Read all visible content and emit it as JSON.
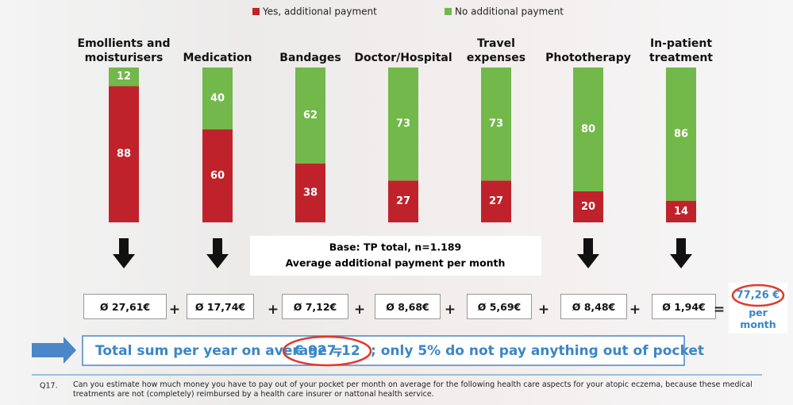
{
  "chart_data": {
    "type": "bar",
    "stacked": true,
    "categories": [
      "Emollients and moisturisers",
      "Medication",
      "Bandages",
      "Doctor/Hospital",
      "Travel expenses",
      "Phototherapy",
      "In-patient treatment"
    ],
    "series": [
      {
        "name": "Yes, additional payment",
        "color": "#c0222b",
        "values": [
          88,
          60,
          38,
          27,
          27,
          20,
          14
        ]
      },
      {
        "name": "No additional payment",
        "color": "#72b84a",
        "values": [
          12,
          40,
          62,
          73,
          73,
          80,
          86
        ]
      }
    ],
    "ylim": [
      0,
      100
    ]
  },
  "base": [
    "Base: TP total, n=1.189",
    "Average additional payment per month"
  ],
  "amounts": [
    "Ø 27,61€",
    "Ø 17,74€",
    "Ø 7,12€",
    "Ø 8,68€",
    "Ø 5,69€",
    "Ø 8,48€",
    "Ø 1,94€"
  ],
  "operators": [
    "+",
    "+",
    "+",
    "+",
    "+",
    "+",
    "="
  ],
  "total": {
    "value": "77,26 €",
    "unit": "per month"
  },
  "summary": {
    "label": "Total sum per year on average =",
    "amount": "€ 927,12",
    "note": "; only 5% do not pay anything out of pocket"
  },
  "footnote": {
    "number": "Q17.",
    "text": "Can you estimate how much money you have to pay out of your pocket per month on average for the following health care aspects for your atopic eczema, because these medical treatments are not (completely) reimbursed by a health care insurer or nattonal health service."
  }
}
